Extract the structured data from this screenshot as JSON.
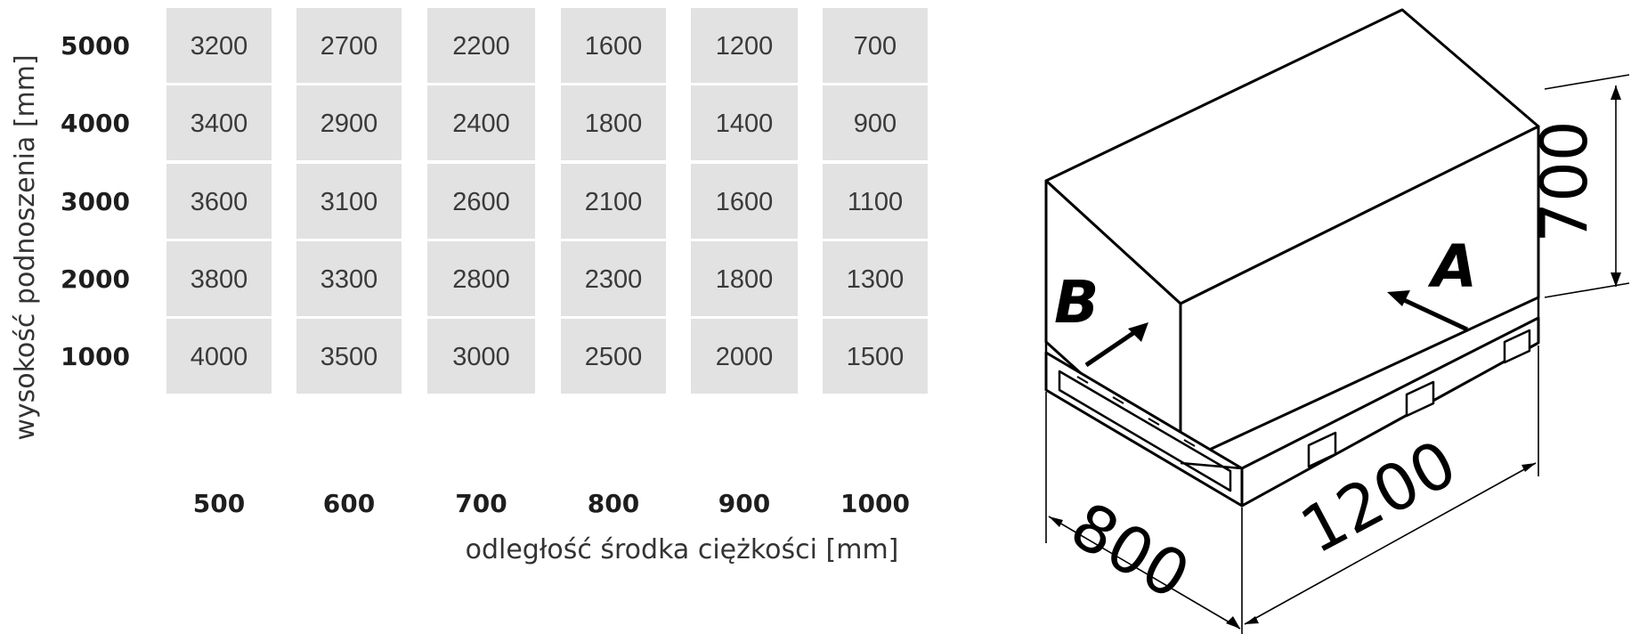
{
  "chart_data": {
    "type": "table",
    "ylabel": "wysokość podnoszenia [mm]",
    "xlabel": "odległość środka ciężkości [mm]",
    "x": [
      "500",
      "600",
      "700",
      "800",
      "900",
      "1000"
    ],
    "y": [
      "5000",
      "4000",
      "3000",
      "2000",
      "1000"
    ],
    "values": [
      [
        3200,
        2700,
        2200,
        1600,
        1200,
        700
      ],
      [
        3400,
        2900,
        2400,
        1800,
        1400,
        900
      ],
      [
        3600,
        3100,
        2600,
        2100,
        1600,
        1100
      ],
      [
        3800,
        3300,
        2800,
        2300,
        1800,
        1300
      ],
      [
        4000,
        3500,
        3000,
        2500,
        2000,
        1500
      ]
    ]
  },
  "diagram": {
    "dims": {
      "height": "700",
      "length": "1200",
      "width": "800"
    },
    "points": {
      "a": "A",
      "b": "B"
    }
  }
}
